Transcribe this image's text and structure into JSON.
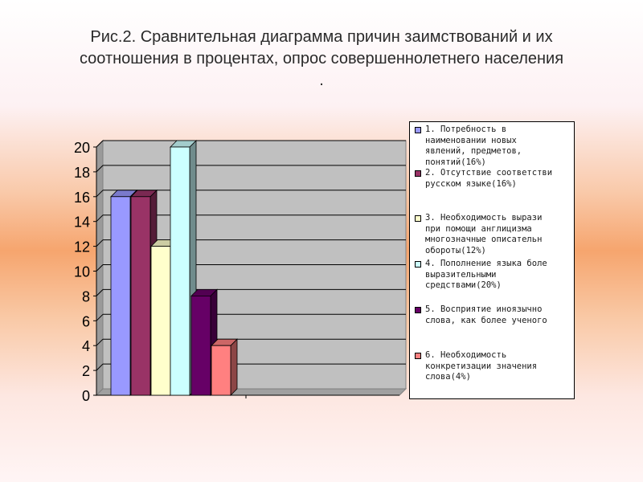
{
  "title": {
    "line1": "Рис.2. Сравнительная диаграмма причин заимствований и их",
    "line2": "соотношения в процентах, опрос совершеннолетнего населения",
    "line3": "."
  },
  "chart_data": {
    "type": "bar",
    "title": "Рис.2. Сравнительная диаграмма причин заимствований и их соотношения в процентах, опрос совершеннолетнего населения",
    "ylim": [
      0,
      20
    ],
    "yticks": [
      0,
      2,
      4,
      6,
      8,
      10,
      12,
      14,
      16,
      18,
      20
    ],
    "grid": true,
    "legend_position": "right",
    "series": [
      {
        "label_lines": [
          "1. Потребность в",
          "наименовании новых",
          "явлений, предметов,",
          "понятий(16%)"
        ],
        "value": 16,
        "color": "#9999ff"
      },
      {
        "label_lines": [
          "2. Отсутствие соответстви",
          "русском языке(16%)"
        ],
        "value": 16,
        "color": "#993366"
      },
      {
        "label_lines": [
          "3. Необходимость вырази",
          "при помощи англицизма",
          "многозначные описательн",
          "обороты(12%)"
        ],
        "value": 12,
        "color": "#ffffcc"
      },
      {
        "label_lines": [
          "4. Пополнение языка боле",
          "выразительными",
          "средствами(20%)"
        ],
        "value": 20,
        "color": "#ccffff"
      },
      {
        "label_lines": [
          "5. Восприятие иноязычно",
          "слова, как более ученого"
        ],
        "value": 8,
        "color": "#660066"
      },
      {
        "label_lines": [
          "6. Необходимость",
          "конкретизации значения",
          "слова(4%)"
        ],
        "value": 4,
        "color": "#ff8080"
      }
    ]
  }
}
